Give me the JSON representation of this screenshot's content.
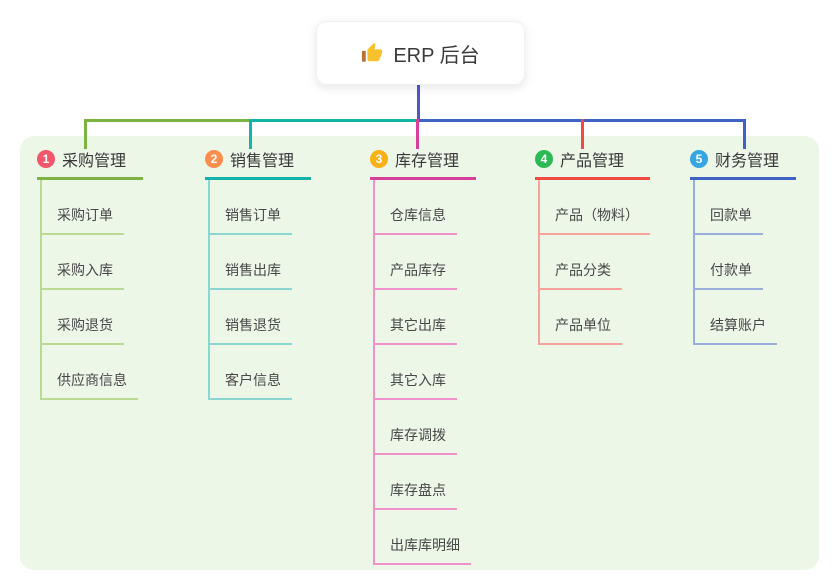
{
  "root": {
    "title": "ERP 后台",
    "icon": "thumbs-up-icon",
    "icon_colors": {
      "hand": "#f8c22e",
      "cuff": "#b5713c"
    }
  },
  "canvas": {
    "background": "#ffffff",
    "panel_background": "#edf7e8",
    "root_line_color": "#4d58c7",
    "root_card_background": "#ffffff",
    "title_text_color": "#383838",
    "child_text_color": "#474747"
  },
  "branches": [
    {
      "badge": "1",
      "title": "采购管理",
      "badge_color": "#f1566b",
      "main_color": "#7cb342",
      "light_color": "#b9da92",
      "children": [
        "采购订单",
        "采购入库",
        "采购退货",
        "供应商信息"
      ]
    },
    {
      "badge": "2",
      "title": "销售管理",
      "badge_color": "#ff8d4d",
      "main_color": "#14b3aa",
      "light_color": "#89d7d1",
      "children": [
        "销售订单",
        "销售出库",
        "销售退货",
        "客户信息"
      ]
    },
    {
      "badge": "3",
      "title": "库存管理",
      "badge_color": "#f9b115",
      "main_color": "#d6409b",
      "light_color": "#f092c9",
      "children": [
        "仓库信息",
        "产品库存",
        "其它出库",
        "其它入库",
        "库存调拨",
        "库存盘点",
        "出库库明细"
      ]
    },
    {
      "badge": "4",
      "title": "产品管理",
      "badge_color": "#2cba55",
      "main_color": "#f04b43",
      "light_color": "#f7a29b",
      "children": [
        "产品（物料）",
        "产品分类",
        "产品单位"
      ]
    },
    {
      "badge": "5",
      "title": "财务管理",
      "badge_color": "#36a6e2",
      "main_color": "#3f62c5",
      "light_color": "#9aaede",
      "children": [
        "回款单",
        "付款单",
        "结算账户"
      ]
    }
  ]
}
